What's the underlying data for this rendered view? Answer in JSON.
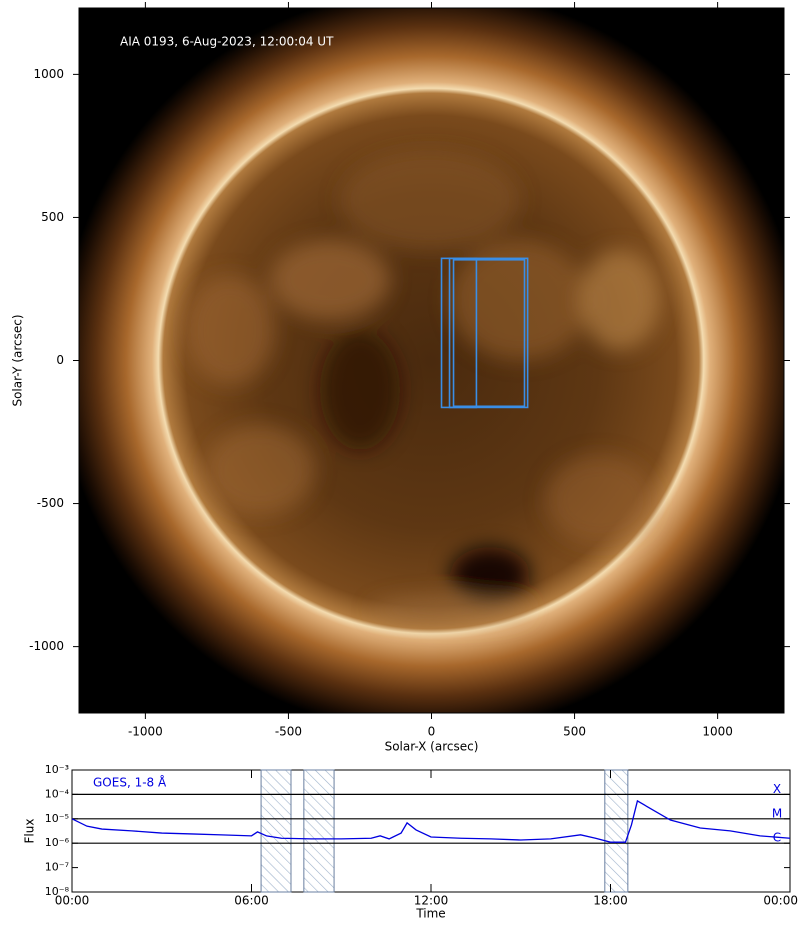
{
  "chart_data": [
    {
      "type": "image",
      "title": "AIA 0193, 6-Aug-2023, 12:00:04 UT",
      "xlabel": "Solar-X (arcsec)",
      "ylabel": "Solar-Y (arcsec)",
      "xlim": [
        -1232,
        1232
      ],
      "ylim": [
        -1232,
        1232
      ],
      "xticks": [
        -1000,
        -500,
        0,
        500,
        1000
      ],
      "yticks": [
        -1000,
        -500,
        0,
        500,
        1000
      ],
      "box_color": "#3a8ee6",
      "boxes": [
        {
          "x": [
            35,
            157
          ],
          "y": [
            -164,
            357
          ]
        },
        {
          "x": [
            63,
            336
          ],
          "y": [
            -164,
            357
          ]
        },
        {
          "x": [
            77,
            325
          ],
          "y": [
            -160,
            352
          ]
        }
      ]
    },
    {
      "type": "line",
      "xlabel": "Time",
      "ylabel": "Flux",
      "xlim": [
        0,
        24
      ],
      "ylim": [
        1e-08,
        0.001
      ],
      "log_y": true,
      "xticks": [
        {
          "value": 0,
          "label": "00:00"
        },
        {
          "value": 6,
          "label": "06:00"
        },
        {
          "value": 12,
          "label": "12:00"
        },
        {
          "value": 18,
          "label": "18:00"
        },
        {
          "value": 24,
          "label": "00:00"
        }
      ],
      "yticks": [
        {
          "value": 0.001,
          "label": "10⁻³"
        },
        {
          "value": 0.0001,
          "label": "10⁻⁴"
        },
        {
          "value": 1e-05,
          "label": "10⁻⁵"
        },
        {
          "value": 1e-06,
          "label": "10⁻⁶"
        },
        {
          "value": 1e-07,
          "label": "10⁻⁷"
        },
        {
          "value": 1e-08,
          "label": "10⁻⁸"
        }
      ],
      "classes": [
        {
          "value": 0.0001,
          "label": "X"
        },
        {
          "value": 1e-05,
          "label": "M"
        },
        {
          "value": 1e-06,
          "label": "C"
        }
      ],
      "shaded": [
        [
          6.32,
          7.32
        ],
        [
          7.75,
          8.76
        ],
        [
          17.81,
          18.58
        ]
      ],
      "x": [
        0,
        0.5,
        1,
        2,
        3,
        4,
        5,
        6,
        6.2,
        6.5,
        7,
        8,
        9,
        10,
        10.3,
        10.6,
        11,
        11.2,
        11.5,
        12,
        13,
        14,
        15,
        16,
        17,
        17.5,
        18,
        18.5,
        18.7,
        18.9,
        19.3,
        20,
        21,
        22,
        23,
        24
      ],
      "series": [
        {
          "name": "GOES, 1-8 Å",
          "color": "#0000e0",
          "values": [
            1e-05,
            5e-06,
            3.8e-06,
            3.2e-06,
            2.6e-06,
            2.4e-06,
            2.2e-06,
            2e-06,
            2.9e-06,
            2e-06,
            1.6e-06,
            1.5e-06,
            1.5e-06,
            1.6e-06,
            2e-06,
            1.5e-06,
            2.6e-06,
            6.8e-06,
            3.5e-06,
            1.8e-06,
            1.6e-06,
            1.5e-06,
            1.35e-06,
            1.5e-06,
            2.2e-06,
            1.6e-06,
            1.1e-06,
            1.1e-06,
            5.6e-06,
            5.4e-05,
            2.8e-05,
            8.9e-06,
            4.2e-06,
            3.2e-06,
            2e-06,
            1.6e-06
          ]
        }
      ]
    }
  ]
}
